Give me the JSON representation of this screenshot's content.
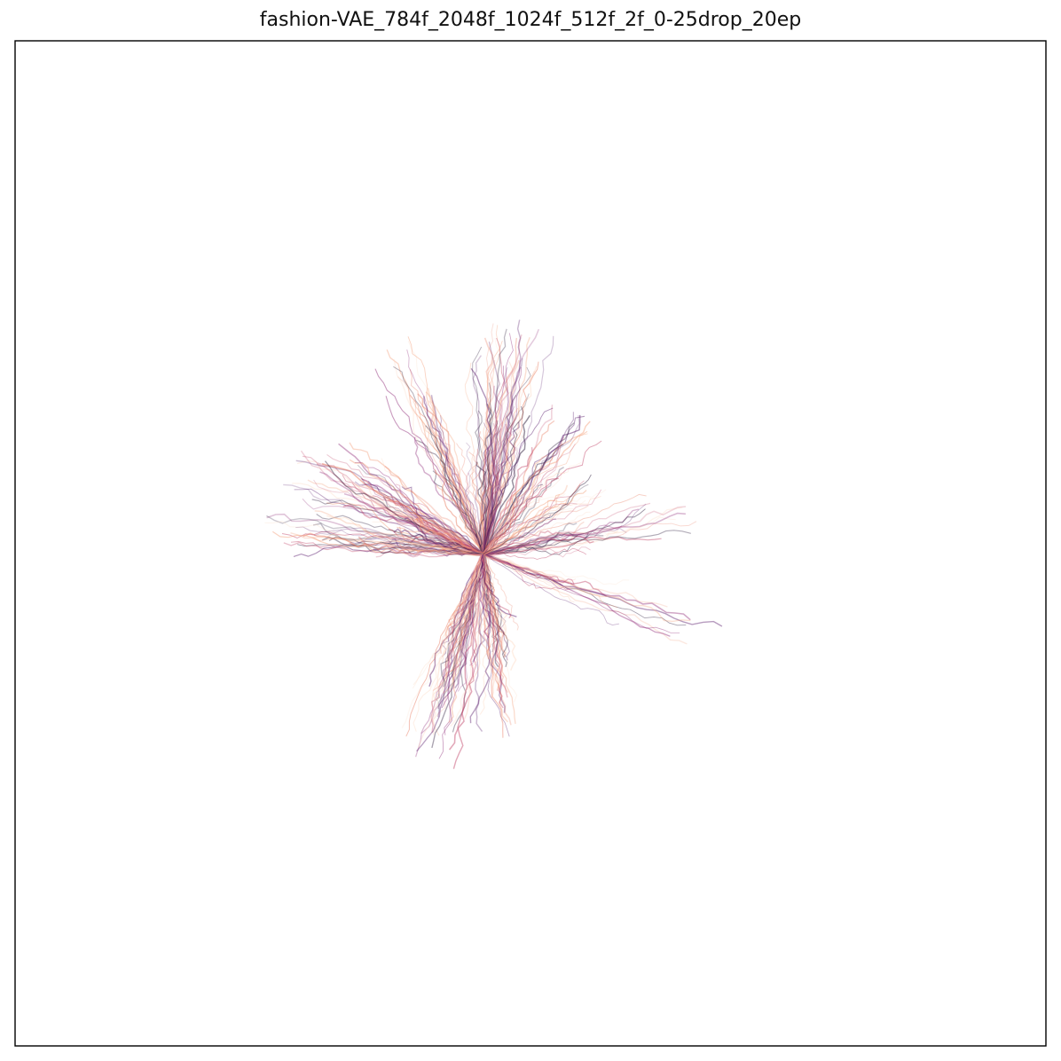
{
  "chart_data": {
    "type": "line",
    "title": "fashion-VAE_784f_2048f_1024f_512f_2f_0-25drop_20ep",
    "xlabel": "",
    "ylabel": "",
    "axis_ticks": false,
    "grid": false,
    "xlim": [
      -1,
      1
    ],
    "ylim": [
      -1,
      1
    ],
    "trajectory_colormap": [
      "#fcdcc7",
      "#f4a582",
      "#e8785c",
      "#c2476a",
      "#8f2a78",
      "#5b1e6e",
      "#2a1a3a"
    ],
    "series": [
      {
        "rays": [
          {
            "angle": 112,
            "length": 0.92,
            "spread": 0.05,
            "count": 35
          },
          {
            "angle": 82,
            "length": 0.95,
            "spread": 0.22,
            "count": 70
          },
          {
            "angle": 55,
            "length": 0.7,
            "spread": 0.18,
            "count": 25
          },
          {
            "angle": 152,
            "length": 0.82,
            "spread": 0.22,
            "count": 55
          },
          {
            "angle": 172,
            "length": 0.86,
            "spread": 0.04,
            "count": 35
          },
          {
            "angle": 14,
            "length": 0.85,
            "spread": 0.04,
            "count": 25
          },
          {
            "angle": -20,
            "length": 1.0,
            "spread": 0.04,
            "count": 18
          },
          {
            "angle": -105,
            "length": 0.88,
            "spread": 0.2,
            "count": 60
          },
          {
            "angle": -80,
            "length": 0.75,
            "spread": 0.18,
            "count": 35
          },
          {
            "angle": 35,
            "length": 0.55,
            "spread": 0.3,
            "count": 20
          }
        ]
      }
    ]
  }
}
